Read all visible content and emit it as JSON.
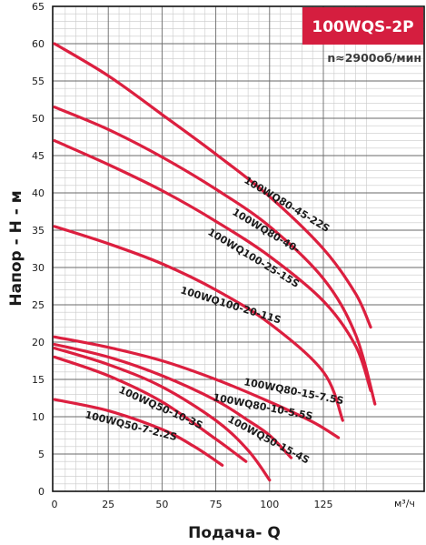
{
  "chart_data": {
    "type": "line",
    "title": "100WQS-2P",
    "subtitle": "n≈2900об/мин",
    "xlabel": "Подача- Q",
    "ylabel": "Напор - H - м",
    "x_unit": "м³/ч",
    "xlim": [
      0,
      150
    ],
    "ylim": [
      0,
      65
    ],
    "x_ticks": [
      "0",
      "25",
      "50",
      "75",
      "100",
      "125"
    ],
    "y_ticks": [
      "0",
      "5",
      "10",
      "15",
      "20",
      "25",
      "30",
      "35",
      "40",
      "45",
      "50",
      "55",
      "60",
      "65"
    ],
    "grid": true,
    "line_color": "#dc1f3f",
    "badge_color": "#d51e3f",
    "series": [
      {
        "name": "100WQ80-45-22S",
        "x": [
          0,
          25,
          50,
          75,
          100,
          125,
          140,
          147
        ],
        "y": [
          60,
          55.7,
          50.5,
          45.2,
          39.5,
          32.5,
          26.5,
          22
        ]
      },
      {
        "name": "100WQ80-40-",
        "x": [
          0,
          25,
          50,
          75,
          100,
          125,
          140,
          149
        ],
        "y": [
          51.5,
          48.5,
          44.8,
          40.5,
          35.5,
          28.5,
          21,
          11.7
        ]
      },
      {
        "name": "100WQ100-25-15S",
        "x": [
          0,
          25,
          50,
          75,
          100,
          125,
          140,
          147
        ],
        "y": [
          47,
          43.8,
          40.3,
          36.2,
          31.5,
          25.5,
          19.5,
          13.5
        ]
      },
      {
        "name": "100WQ100-20-11S",
        "x": [
          0,
          25,
          50,
          75,
          100,
          125,
          134
        ],
        "y": [
          35.5,
          33.2,
          30.5,
          27,
          22.5,
          16,
          9.5
        ]
      },
      {
        "name": "100WQ80-15-7.5S",
        "x": [
          0,
          25,
          50,
          75,
          100,
          120,
          132
        ],
        "y": [
          20.7,
          19.3,
          17.5,
          15,
          12,
          9.3,
          7.2
        ]
      },
      {
        "name": "100WQ80-10-5.5S",
        "x": [
          0,
          25,
          50,
          75,
          90,
          100,
          110
        ],
        "y": [
          19.7,
          18,
          15.5,
          12.2,
          9.5,
          7.5,
          4.5
        ]
      },
      {
        "name": "100WQ50-15-4S",
        "x": [
          0,
          25,
          50,
          75,
          90,
          100
        ],
        "y": [
          19.2,
          17,
          14,
          9.5,
          5.5,
          1.5
        ]
      },
      {
        "name": "100WQ50-10-3S",
        "x": [
          0,
          25,
          50,
          75,
          89
        ],
        "y": [
          18,
          15.5,
          12,
          7,
          4
        ]
      },
      {
        "name": "100WQ50-7-2.2S",
        "x": [
          0,
          25,
          50,
          65,
          78
        ],
        "y": [
          12.3,
          10.8,
          8.3,
          6,
          3.5
        ]
      }
    ]
  }
}
